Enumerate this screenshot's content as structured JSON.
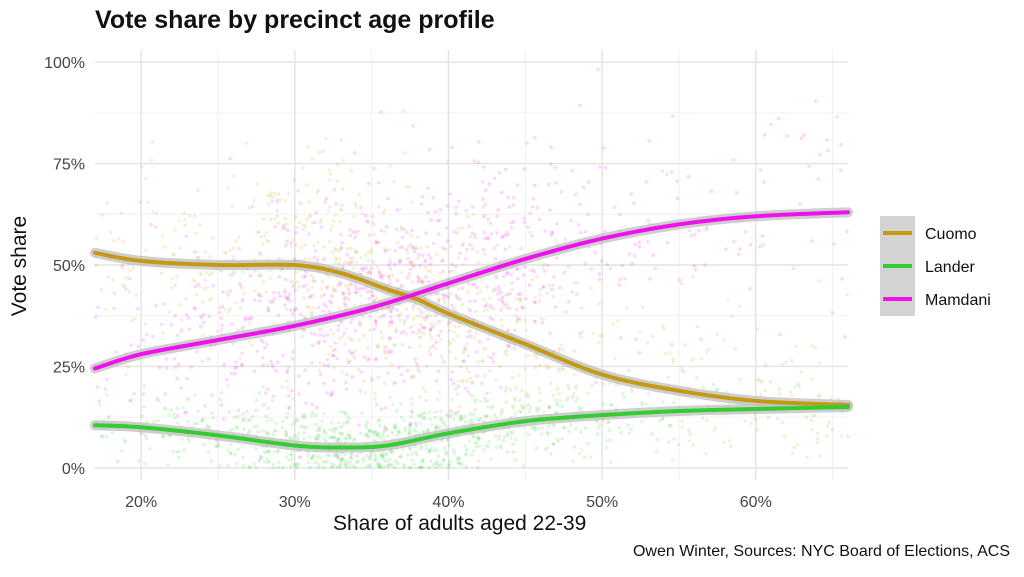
{
  "chart_data": {
    "type": "line",
    "title": "Vote share by precinct age profile",
    "xlabel": "Share of adults aged 22-39",
    "ylabel": "Vote share",
    "caption": "Owen Winter, Sources: NYC Board of Elections, ACS",
    "xlim": [
      0.17,
      0.66
    ],
    "ylim": [
      -0.03,
      1.03
    ],
    "x_ticks": [
      0.2,
      0.3,
      0.4,
      0.5,
      0.6
    ],
    "x_tick_labels": [
      "20%",
      "30%",
      "40%",
      "50%",
      "60%"
    ],
    "y_ticks": [
      0,
      0.25,
      0.5,
      0.75,
      1.0
    ],
    "y_tick_labels": [
      "0%",
      "25%",
      "50%",
      "75%",
      "100%"
    ],
    "grid": true,
    "legend_position": "right",
    "series": [
      {
        "name": "Cuomo",
        "color": "#c49a14",
        "x": [
          0.17,
          0.2,
          0.25,
          0.3,
          0.33,
          0.36,
          0.38,
          0.4,
          0.45,
          0.5,
          0.55,
          0.6,
          0.66
        ],
        "y": [
          0.53,
          0.51,
          0.5,
          0.5,
          0.48,
          0.44,
          0.415,
          0.38,
          0.305,
          0.23,
          0.19,
          0.165,
          0.155
        ]
      },
      {
        "name": "Lander",
        "color": "#33cc33",
        "x": [
          0.17,
          0.2,
          0.25,
          0.3,
          0.33,
          0.36,
          0.4,
          0.45,
          0.5,
          0.55,
          0.6,
          0.66
        ],
        "y": [
          0.105,
          0.1,
          0.08,
          0.055,
          0.05,
          0.055,
          0.085,
          0.115,
          0.13,
          0.14,
          0.145,
          0.15
        ]
      },
      {
        "name": "Mamdani",
        "color": "#ee11ee",
        "x": [
          0.17,
          0.2,
          0.25,
          0.3,
          0.35,
          0.4,
          0.45,
          0.5,
          0.55,
          0.6,
          0.66
        ],
        "y": [
          0.245,
          0.28,
          0.315,
          0.35,
          0.395,
          0.455,
          0.515,
          0.565,
          0.6,
          0.62,
          0.63
        ]
      }
    ]
  }
}
